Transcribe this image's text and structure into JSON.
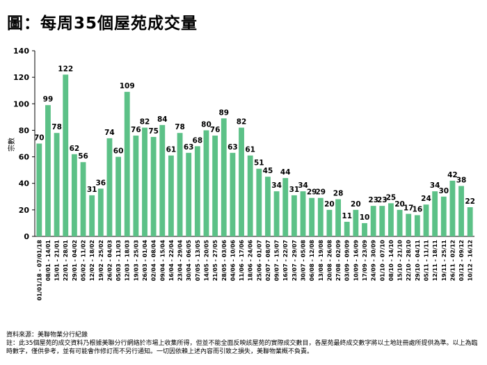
{
  "title": "圖：每周35個屋苑成交量",
  "chart_data": {
    "type": "bar",
    "ylabel": "宗數",
    "xlabel": "",
    "ylim": [
      0,
      140
    ],
    "yticks": [
      0,
      20,
      40,
      60,
      80,
      100,
      120,
      140
    ],
    "bar_color": "#5cc187",
    "grid": false,
    "categories": [
      "01/01/18 - 07/01/18",
      "08/01 - 14/01",
      "15/01 - 21/01",
      "22/01 - 28/01",
      "29/01 - 04/02",
      "05/02 - 11/02",
      "12/02 - 18/02",
      "19/02 - 25/02",
      "26/02 - 04/03",
      "05/03 - 11/03",
      "12/03 - 18/03",
      "19/03 - 25/03",
      "26/03 - 01/04",
      "02/04 - 08/04",
      "09/04 - 15/04",
      "16/04 - 22/04",
      "23/04 - 29/04",
      "30/04 - 06/05",
      "07/05 - 13/05",
      "14/05 - 20/05",
      "21/05 - 27/05",
      "28/05 - 03/06",
      "04/06 - 10/06",
      "11/06 - 17/06",
      "18/06 - 24/06",
      "25/06 - 01/07",
      "02/07 - 08/07",
      "09/07 - 15/07",
      "16/07 - 22/07",
      "23/07 - 29/07",
      "30/07 - 05/08",
      "06/08 - 12/08",
      "13/08 - 19/08",
      "20/08 - 26/08",
      "27/08 - 02/09",
      "03/09 - 09/09",
      "10/09 - 16/09",
      "17/09 - 23/09",
      "24/09 - 30/09",
      "01/10 - 07/10",
      "08/10 - 14/10",
      "15/10 - 21/10",
      "22/10 - 28/10",
      "29/10 - 04/11",
      "05/11 - 11/11",
      "12/11 - 18/11",
      "19/11 - 25/11",
      "26/11 - 02/12",
      "03/12 - 09/12",
      "10/12 - 16/12"
    ],
    "values": [
      70,
      99,
      78,
      122,
      62,
      56,
      31,
      36,
      74,
      60,
      109,
      76,
      82,
      75,
      84,
      61,
      78,
      63,
      68,
      80,
      76,
      89,
      63,
      82,
      61,
      51,
      45,
      34,
      44,
      31,
      34,
      29,
      29,
      20,
      28,
      11,
      20,
      10,
      23,
      23,
      25,
      20,
      17,
      16,
      24,
      34,
      30,
      42,
      38,
      22
    ]
  },
  "footer": {
    "source": "資料來源：美聯物業分行紀錄",
    "note": "註：此35個屋苑的成交資料乃根據美聯分行網絡於市場上收集所得，但並不能全面反映該屋苑的實際成交數目，各屋苑最終成交數字將以土地註冊處所提供為準。以上為臨時數字，僅供參考，並有可能會作修訂而不另行通知。一切因依賴上述內容而引致之損失，美聯物業概不負責。"
  }
}
